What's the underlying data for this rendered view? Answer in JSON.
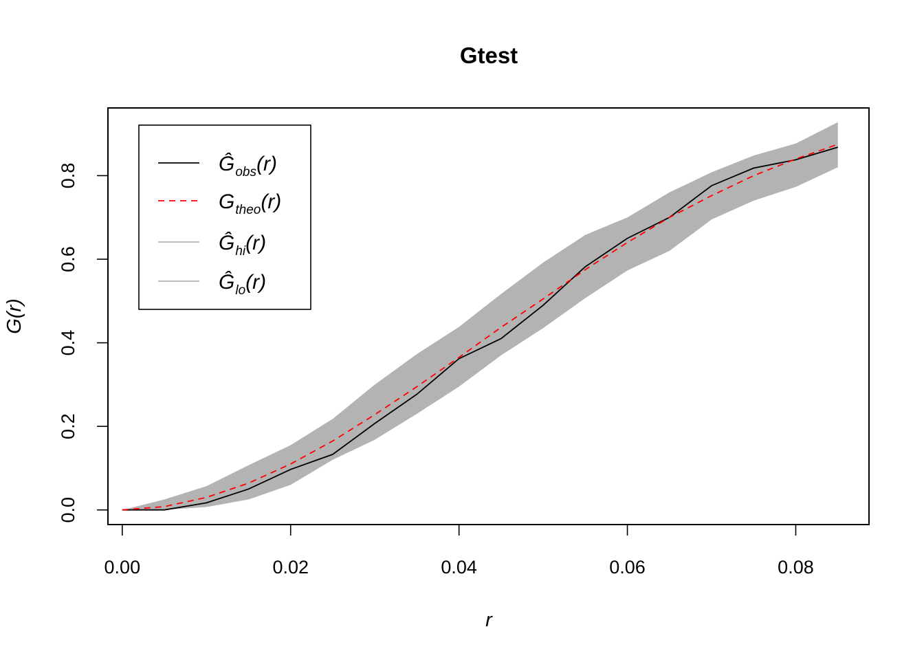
{
  "chart_data": {
    "type": "line",
    "title": "Gtest",
    "xlabel": "r",
    "ylabel": "G(r)",
    "ylabel_parts": {
      "base": "G",
      "arg": "r"
    },
    "xlim": [
      -0.0017,
      0.0887
    ],
    "ylim": [
      -0.035,
      0.962
    ],
    "xticks": [
      0.0,
      0.02,
      0.04,
      0.06,
      0.08
    ],
    "xtick_labels": [
      "0.00",
      "0.02",
      "0.04",
      "0.06",
      "0.08"
    ],
    "yticks": [
      0.0,
      0.2,
      0.4,
      0.6,
      0.8
    ],
    "ytick_labels": [
      "0.0",
      "0.2",
      "0.4",
      "0.6",
      "0.8"
    ],
    "grid": false,
    "legend_position": "top-left",
    "x": [
      0.0,
      0.005,
      0.01,
      0.015,
      0.02,
      0.025,
      0.03,
      0.035,
      0.04,
      0.045,
      0.05,
      0.055,
      0.06,
      0.065,
      0.07,
      0.075,
      0.08,
      0.085
    ],
    "series": [
      {
        "key": "obs",
        "name": "Ĝobs(r)",
        "label_base": "Ĝ",
        "label_sub": "obs",
        "label_arg": "r",
        "color": "#000000",
        "dash": "solid",
        "role": "line",
        "values": [
          0.0,
          0.0,
          0.017,
          0.05,
          0.097,
          0.133,
          0.207,
          0.277,
          0.362,
          0.41,
          0.49,
          0.582,
          0.65,
          0.7,
          0.776,
          0.818,
          0.838,
          0.868
        ]
      },
      {
        "key": "theo",
        "name": "Gtheo(r)",
        "label_base": "G",
        "label_sub": "theo",
        "label_arg": "r",
        "color": "#ff0000",
        "dash": "dashed",
        "role": "line",
        "values": [
          0.0,
          0.008,
          0.03,
          0.064,
          0.11,
          0.165,
          0.228,
          0.295,
          0.365,
          0.437,
          0.505,
          0.575,
          0.64,
          0.7,
          0.752,
          0.8,
          0.84,
          0.875
        ]
      },
      {
        "key": "hi",
        "name": "Ĝhi(r)",
        "label_base": "Ĝ",
        "label_sub": "hi",
        "label_arg": "r",
        "color": "#b3b3b3",
        "dash": "solid",
        "role": "band-upper",
        "values": [
          0.0,
          0.025,
          0.057,
          0.107,
          0.155,
          0.218,
          0.3,
          0.373,
          0.438,
          0.517,
          0.592,
          0.658,
          0.7,
          0.76,
          0.808,
          0.848,
          0.877,
          0.928
        ]
      },
      {
        "key": "lo",
        "name": "Ĝlo(r)",
        "label_base": "Ĝ",
        "label_sub": "lo",
        "label_arg": "r",
        "color": "#b3b3b3",
        "dash": "solid",
        "role": "band-lower",
        "values": [
          0.0,
          0.0,
          0.007,
          0.025,
          0.06,
          0.12,
          0.168,
          0.23,
          0.295,
          0.37,
          0.435,
          0.507,
          0.573,
          0.62,
          0.695,
          0.74,
          0.773,
          0.82
        ]
      }
    ]
  }
}
